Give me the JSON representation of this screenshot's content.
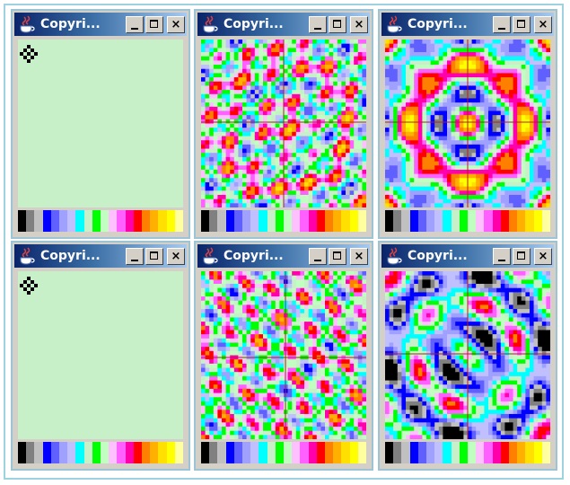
{
  "windows": [
    {
      "id": "w1",
      "title": "Copyri...",
      "pattern": "empty"
    },
    {
      "id": "w2",
      "title": "Copyri...",
      "pattern": "diagonal"
    },
    {
      "id": "w3",
      "title": "Copyri...",
      "pattern": "radial"
    },
    {
      "id": "w4",
      "title": "Copyri...",
      "pattern": "empty"
    },
    {
      "id": "w5",
      "title": "Copyri...",
      "pattern": "diagonal-soft"
    },
    {
      "id": "w6",
      "title": "Copyri...",
      "pattern": "radial-dark"
    }
  ],
  "title_buttons": {
    "minimize": "minimize",
    "maximize": "maximize",
    "close": "×"
  },
  "colors": {
    "background": "#c8f0c8",
    "legend": [
      "#000000",
      "#808080",
      "#c0c0c0",
      "#0000ff",
      "#6060ff",
      "#a0a0ff",
      "#c0c0ff",
      "#00ffff",
      "#c8f0c8",
      "#00ff00",
      "#c0ffc0",
      "#ffc0ff",
      "#ff60ff",
      "#ff00aa",
      "#ff0000",
      "#ff8000",
      "#ffb000",
      "#ffe000",
      "#ffff00",
      "#ffffa0"
    ]
  },
  "icons": {
    "app": "java-cup-icon",
    "minimize": "minimize-icon",
    "maximize": "maximize-icon",
    "close": "close-icon"
  }
}
